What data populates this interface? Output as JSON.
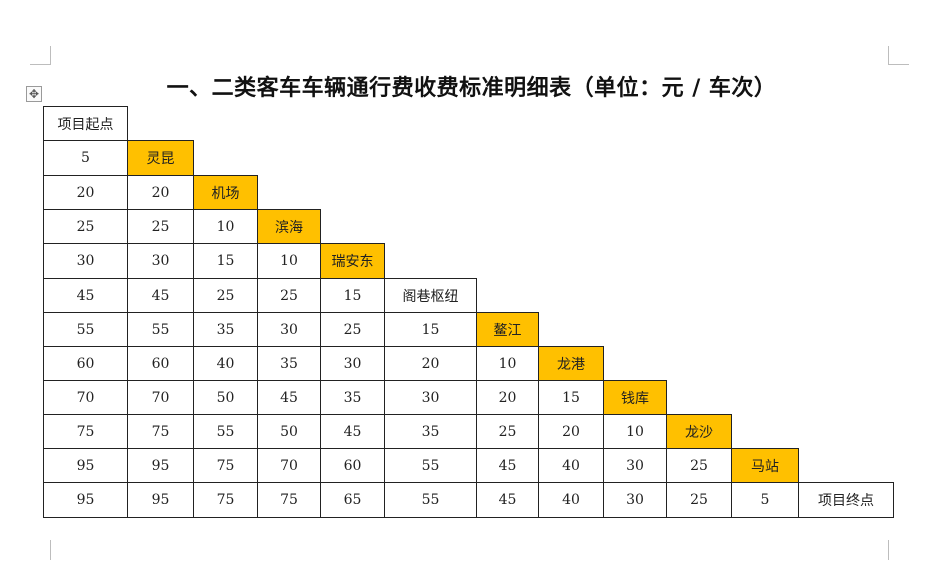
{
  "title": "一、二类客车车辆通行费收费标准明细表（单位：元 / 车次）",
  "colors": {
    "highlight": "#ffc000"
  },
  "icons": {
    "move_handle": "move-cross-icon"
  },
  "table": {
    "start_label": "项目起点",
    "end_label": "项目终点",
    "stations": [
      "灵昆",
      "机场",
      "滨海",
      "瑞安东",
      "阁巷枢纽",
      "鳌江",
      "龙港",
      "钱库",
      "龙沙",
      "马站"
    ],
    "highlighted": [
      true,
      true,
      true,
      true,
      false,
      true,
      true,
      true,
      true,
      true
    ],
    "rows": [
      [
        5
      ],
      [
        20,
        20
      ],
      [
        25,
        25,
        10
      ],
      [
        30,
        30,
        15,
        10
      ],
      [
        45,
        45,
        25,
        25,
        15
      ],
      [
        55,
        55,
        35,
        30,
        25,
        15
      ],
      [
        60,
        60,
        40,
        35,
        30,
        20,
        10
      ],
      [
        70,
        70,
        50,
        45,
        35,
        30,
        20,
        15
      ],
      [
        75,
        75,
        55,
        50,
        45,
        35,
        25,
        20,
        10
      ],
      [
        95,
        95,
        75,
        70,
        60,
        55,
        45,
        40,
        30,
        25
      ],
      [
        95,
        95,
        75,
        75,
        65,
        55,
        45,
        40,
        30,
        25,
        5
      ]
    ]
  }
}
